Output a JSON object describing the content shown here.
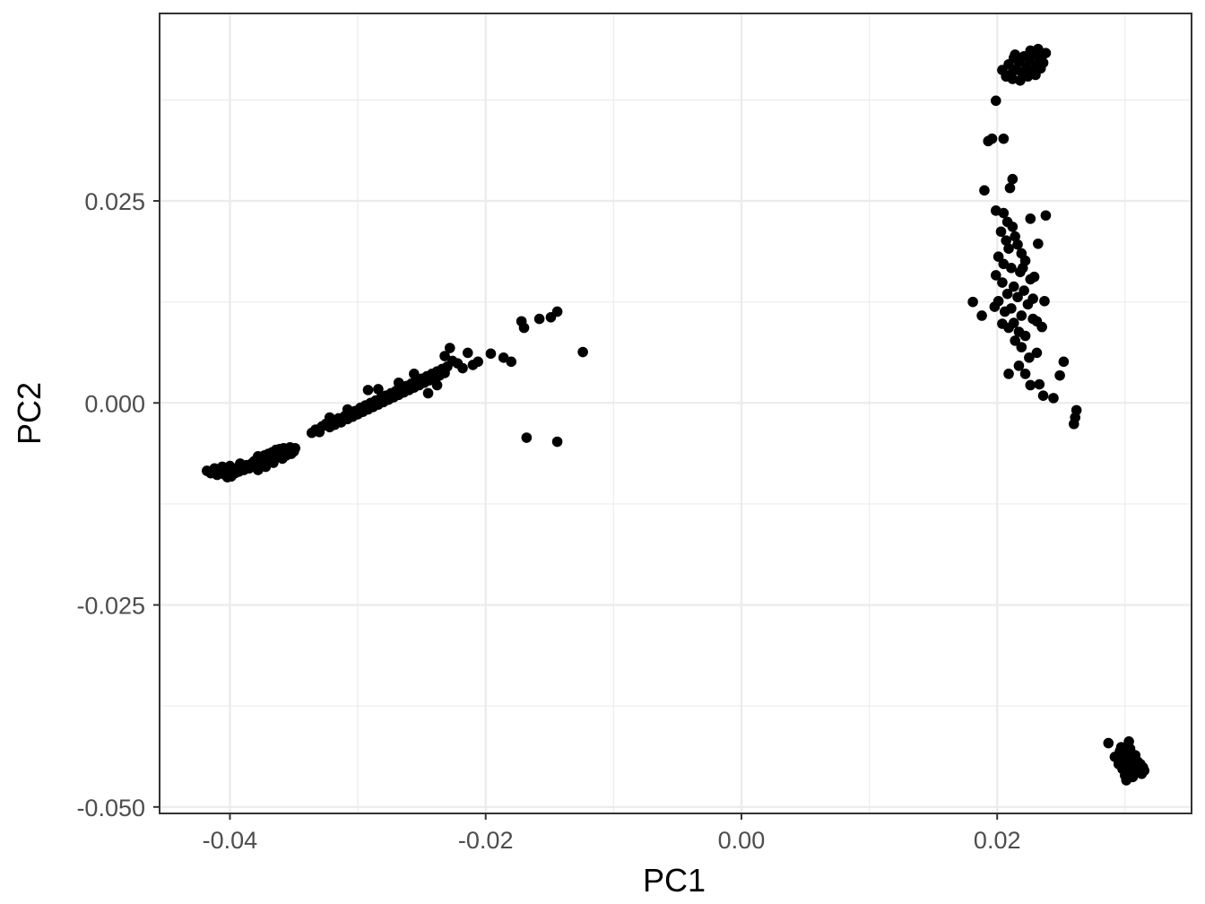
{
  "chart_data": {
    "type": "scatter",
    "xlabel": "PC1",
    "ylabel": "PC2",
    "xlim": [
      -0.0455,
      0.0352
    ],
    "ylim": [
      -0.0508,
      0.0482
    ],
    "x_ticks": [
      -0.04,
      -0.02,
      0.0,
      0.02
    ],
    "x_tick_labels": [
      "-0.04",
      "-0.02",
      "0.00",
      "0.02"
    ],
    "y_ticks": [
      -0.05,
      -0.025,
      0.0,
      0.025
    ],
    "y_tick_labels": [
      "-0.050",
      "-0.025",
      "0.000",
      "0.025"
    ],
    "grid": true,
    "legend": "none",
    "point_color": "#000000",
    "grid_color": "#ebebeb",
    "series": [
      {
        "points": [
          [
            -0.0418,
            -0.0084
          ],
          [
            -0.0415,
            -0.0087
          ],
          [
            -0.0412,
            -0.0081
          ],
          [
            -0.041,
            -0.0089
          ],
          [
            -0.0408,
            -0.0084
          ],
          [
            -0.0406,
            -0.0079
          ],
          [
            -0.0405,
            -0.0088
          ],
          [
            -0.0403,
            -0.0082
          ],
          [
            -0.0401,
            -0.0086
          ],
          [
            -0.04,
            -0.0078
          ],
          [
            -0.0399,
            -0.0091
          ],
          [
            -0.0397,
            -0.0083
          ],
          [
            -0.0396,
            -0.0087
          ],
          [
            -0.0395,
            -0.0081
          ],
          [
            -0.0393,
            -0.0085
          ],
          [
            -0.0391,
            -0.0079
          ],
          [
            -0.0389,
            -0.0083
          ],
          [
            -0.0387,
            -0.0077
          ],
          [
            -0.0385,
            -0.0081
          ],
          [
            -0.0383,
            -0.0075
          ],
          [
            -0.0381,
            -0.0072
          ],
          [
            -0.0379,
            -0.0078
          ],
          [
            -0.0378,
            -0.0083
          ],
          [
            -0.0376,
            -0.0069
          ],
          [
            -0.0374,
            -0.0074
          ],
          [
            -0.0373,
            -0.0065
          ],
          [
            -0.0371,
            -0.0071
          ],
          [
            -0.037,
            -0.0063
          ],
          [
            -0.0368,
            -0.0068
          ],
          [
            -0.0367,
            -0.0061
          ],
          [
            -0.0365,
            -0.0066
          ],
          [
            -0.0364,
            -0.0058
          ],
          [
            -0.0362,
            -0.0063
          ],
          [
            -0.0361,
            -0.0057
          ],
          [
            -0.036,
            -0.0062
          ],
          [
            -0.0359,
            -0.0069
          ],
          [
            -0.0358,
            -0.0056
          ],
          [
            -0.0357,
            -0.0061
          ],
          [
            -0.0356,
            -0.0065
          ],
          [
            -0.0354,
            -0.0059
          ],
          [
            -0.0353,
            -0.0055
          ],
          [
            -0.0352,
            -0.0063
          ],
          [
            -0.0351,
            -0.0058
          ],
          [
            -0.035,
            -0.006
          ],
          [
            -0.0349,
            -0.0056
          ],
          [
            -0.0378,
            -0.0066
          ],
          [
            -0.0372,
            -0.0079
          ],
          [
            -0.0366,
            -0.0074
          ],
          [
            -0.0392,
            -0.0075
          ],
          [
            -0.0402,
            -0.0092
          ],
          [
            -0.0336,
            -0.0037
          ],
          [
            -0.0333,
            -0.0033
          ],
          [
            -0.033,
            -0.0036
          ],
          [
            -0.0328,
            -0.0029
          ],
          [
            -0.0325,
            -0.0026
          ],
          [
            -0.0322,
            -0.003
          ],
          [
            -0.032,
            -0.0022
          ],
          [
            -0.0318,
            -0.0027
          ],
          [
            -0.0315,
            -0.0019
          ],
          [
            -0.0313,
            -0.0024
          ],
          [
            -0.031,
            -0.0016
          ],
          [
            -0.0308,
            -0.002
          ],
          [
            -0.0306,
            -0.0012
          ],
          [
            -0.0304,
            -0.0017
          ],
          [
            -0.0302,
            -0.001
          ],
          [
            -0.03,
            -0.0014
          ],
          [
            -0.0298,
            -0.0006
          ],
          [
            -0.0296,
            -0.0011
          ],
          [
            -0.0294,
            -0.0003
          ],
          [
            -0.0292,
            -0.0008
          ],
          [
            -0.029,
            0.0
          ],
          [
            -0.0288,
            -0.0005
          ],
          [
            -0.0286,
            0.0003
          ],
          [
            -0.0284,
            -0.0002
          ],
          [
            -0.0282,
            0.0006
          ],
          [
            -0.028,
            0.0001
          ],
          [
            -0.0278,
            0.0009
          ],
          [
            -0.0276,
            0.0004
          ],
          [
            -0.0274,
            0.0012
          ],
          [
            -0.0272,
            0.0007
          ],
          [
            -0.027,
            0.0015
          ],
          [
            -0.0268,
            0.001
          ],
          [
            -0.0266,
            0.0018
          ],
          [
            -0.0264,
            0.0013
          ],
          [
            -0.0262,
            0.0021
          ],
          [
            -0.026,
            0.0016
          ],
          [
            -0.0258,
            0.0024
          ],
          [
            -0.0256,
            0.0019
          ],
          [
            -0.0254,
            0.0027
          ],
          [
            -0.0252,
            0.0022
          ],
          [
            -0.025,
            0.003
          ],
          [
            -0.0248,
            0.0025
          ],
          [
            -0.0246,
            0.0033
          ],
          [
            -0.0244,
            0.0028
          ],
          [
            -0.0242,
            0.0036
          ],
          [
            -0.024,
            0.0031
          ],
          [
            -0.0238,
            0.0039
          ],
          [
            -0.0236,
            0.0034
          ],
          [
            -0.0234,
            0.0042
          ],
          [
            -0.0232,
            0.0037
          ],
          [
            -0.023,
            0.0045
          ],
          [
            -0.0228,
            0.0068
          ],
          [
            -0.0232,
            0.0058
          ],
          [
            -0.0226,
            0.0052
          ],
          [
            -0.0222,
            0.0049
          ],
          [
            -0.0218,
            0.0043
          ],
          [
            -0.0214,
            0.0062
          ],
          [
            -0.021,
            0.0047
          ],
          [
            -0.0206,
            0.0051
          ],
          [
            -0.0196,
            0.0061
          ],
          [
            -0.0186,
            0.0056
          ],
          [
            -0.018,
            0.0051
          ],
          [
            -0.0245,
            0.0012
          ],
          [
            -0.0268,
            0.0025
          ],
          [
            -0.0292,
            0.0016
          ],
          [
            -0.0308,
            -0.0008
          ],
          [
            -0.0322,
            -0.0018
          ],
          [
            -0.0256,
            0.0036
          ],
          [
            -0.0238,
            0.0022
          ],
          [
            -0.0284,
            0.0017
          ],
          [
            -0.0172,
            0.0101
          ],
          [
            -0.017,
            0.0093
          ],
          [
            -0.0158,
            0.0104
          ],
          [
            -0.0149,
            0.0106
          ],
          [
            -0.0144,
            0.0113
          ],
          [
            -0.0124,
            0.0063
          ],
          [
            -0.0168,
            -0.0043
          ],
          [
            -0.0144,
            -0.0048
          ],
          [
            0.0209,
            0.0419
          ],
          [
            0.0211,
            0.0407
          ],
          [
            0.0213,
            0.0427
          ],
          [
            0.0215,
            0.0413
          ],
          [
            0.0217,
            0.0422
          ],
          [
            0.0219,
            0.0409
          ],
          [
            0.0221,
            0.0429
          ],
          [
            0.0223,
            0.0416
          ],
          [
            0.0225,
            0.0424
          ],
          [
            0.0227,
            0.0411
          ],
          [
            0.0229,
            0.0431
          ],
          [
            0.0231,
            0.0418
          ],
          [
            0.0233,
            0.0426
          ],
          [
            0.0234,
            0.0414
          ],
          [
            0.0236,
            0.0421
          ],
          [
            0.0238,
            0.0433
          ],
          [
            0.0212,
            0.0401
          ],
          [
            0.0218,
            0.0399
          ],
          [
            0.0224,
            0.0404
          ],
          [
            0.023,
            0.0406
          ],
          [
            0.0232,
            0.0438
          ],
          [
            0.0204,
            0.0412
          ],
          [
            0.0207,
            0.0404
          ],
          [
            0.0226,
            0.0436
          ],
          [
            0.0214,
            0.0431
          ],
          [
            0.0199,
            0.0374
          ],
          [
            0.0193,
            0.0324
          ],
          [
            0.0196,
            0.0327
          ],
          [
            0.0205,
            0.0327
          ],
          [
            0.0212,
            0.0277
          ],
          [
            0.021,
            0.0266
          ],
          [
            0.019,
            0.0263
          ],
          [
            0.0199,
            0.0238
          ],
          [
            0.0205,
            0.0235
          ],
          [
            0.0208,
            0.0224
          ],
          [
            0.0212,
            0.0218
          ],
          [
            0.0203,
            0.0212
          ],
          [
            0.0214,
            0.0206
          ],
          [
            0.0207,
            0.0201
          ],
          [
            0.0216,
            0.0196
          ],
          [
            0.0209,
            0.0191
          ],
          [
            0.0219,
            0.0185
          ],
          [
            0.0201,
            0.0181
          ],
          [
            0.0222,
            0.0176
          ],
          [
            0.0205,
            0.0172
          ],
          [
            0.0211,
            0.0167
          ],
          [
            0.0218,
            0.0162
          ],
          [
            0.0199,
            0.0158
          ],
          [
            0.0226,
            0.0153
          ],
          [
            0.0204,
            0.0149
          ],
          [
            0.0213,
            0.0144
          ],
          [
            0.0221,
            0.0139
          ],
          [
            0.0208,
            0.0135
          ],
          [
            0.0216,
            0.0131
          ],
          [
            0.0201,
            0.0126
          ],
          [
            0.0224,
            0.0122
          ],
          [
            0.0211,
            0.0117
          ],
          [
            0.0206,
            0.0113
          ],
          [
            0.0219,
            0.0108
          ],
          [
            0.0228,
            0.0104
          ],
          [
            0.0213,
            0.0099
          ],
          [
            0.0209,
            0.0093
          ],
          [
            0.0217,
            0.0088
          ],
          [
            0.0222,
            0.0083
          ],
          [
            0.0231,
            0.0101
          ],
          [
            0.0235,
            0.0094
          ],
          [
            0.0228,
            0.0129
          ],
          [
            0.0237,
            0.0126
          ],
          [
            0.0232,
            0.0197
          ],
          [
            0.0238,
            0.0232
          ],
          [
            0.0226,
            0.0228
          ],
          [
            0.022,
            0.0167
          ],
          [
            0.0229,
            0.0156
          ],
          [
            0.0181,
            0.0125
          ],
          [
            0.0188,
            0.0108
          ],
          [
            0.0198,
            0.0119
          ],
          [
            0.0204,
            0.0098
          ],
          [
            0.0214,
            0.0077
          ],
          [
            0.0219,
            0.0069
          ],
          [
            0.0225,
            0.0056
          ],
          [
            0.0231,
            0.0062
          ],
          [
            0.0217,
            0.0046
          ],
          [
            0.0222,
            0.0036
          ],
          [
            0.0209,
            0.0036
          ],
          [
            0.0233,
            0.0023
          ],
          [
            0.0226,
            0.0022
          ],
          [
            0.0236,
            0.0009
          ],
          [
            0.0244,
            0.0006
          ],
          [
            0.0249,
            0.0034
          ],
          [
            0.0252,
            0.0051
          ],
          [
            0.0262,
            -0.0009
          ],
          [
            0.0261,
            -0.0018
          ],
          [
            0.026,
            -0.0026
          ],
          [
            0.0287,
            -0.0421
          ],
          [
            0.0292,
            -0.0438
          ],
          [
            0.0295,
            -0.0447
          ],
          [
            0.0297,
            -0.0426
          ],
          [
            0.0298,
            -0.0453
          ],
          [
            0.0299,
            -0.0439
          ],
          [
            0.03,
            -0.0461
          ],
          [
            0.0301,
            -0.0432
          ],
          [
            0.0302,
            -0.0446
          ],
          [
            0.0303,
            -0.0455
          ],
          [
            0.0304,
            -0.0428
          ],
          [
            0.0305,
            -0.0441
          ],
          [
            0.0306,
            -0.0463
          ],
          [
            0.0307,
            -0.0449
          ],
          [
            0.0308,
            -0.0436
          ],
          [
            0.0309,
            -0.0457
          ],
          [
            0.031,
            -0.0444
          ],
          [
            0.0311,
            -0.0452
          ],
          [
            0.0312,
            -0.0447
          ],
          [
            0.0313,
            -0.0459
          ],
          [
            0.0314,
            -0.0451
          ],
          [
            0.0315,
            -0.0455
          ],
          [
            0.0296,
            -0.0431
          ],
          [
            0.0301,
            -0.0467
          ],
          [
            0.0303,
            -0.0419
          ]
        ]
      }
    ]
  }
}
